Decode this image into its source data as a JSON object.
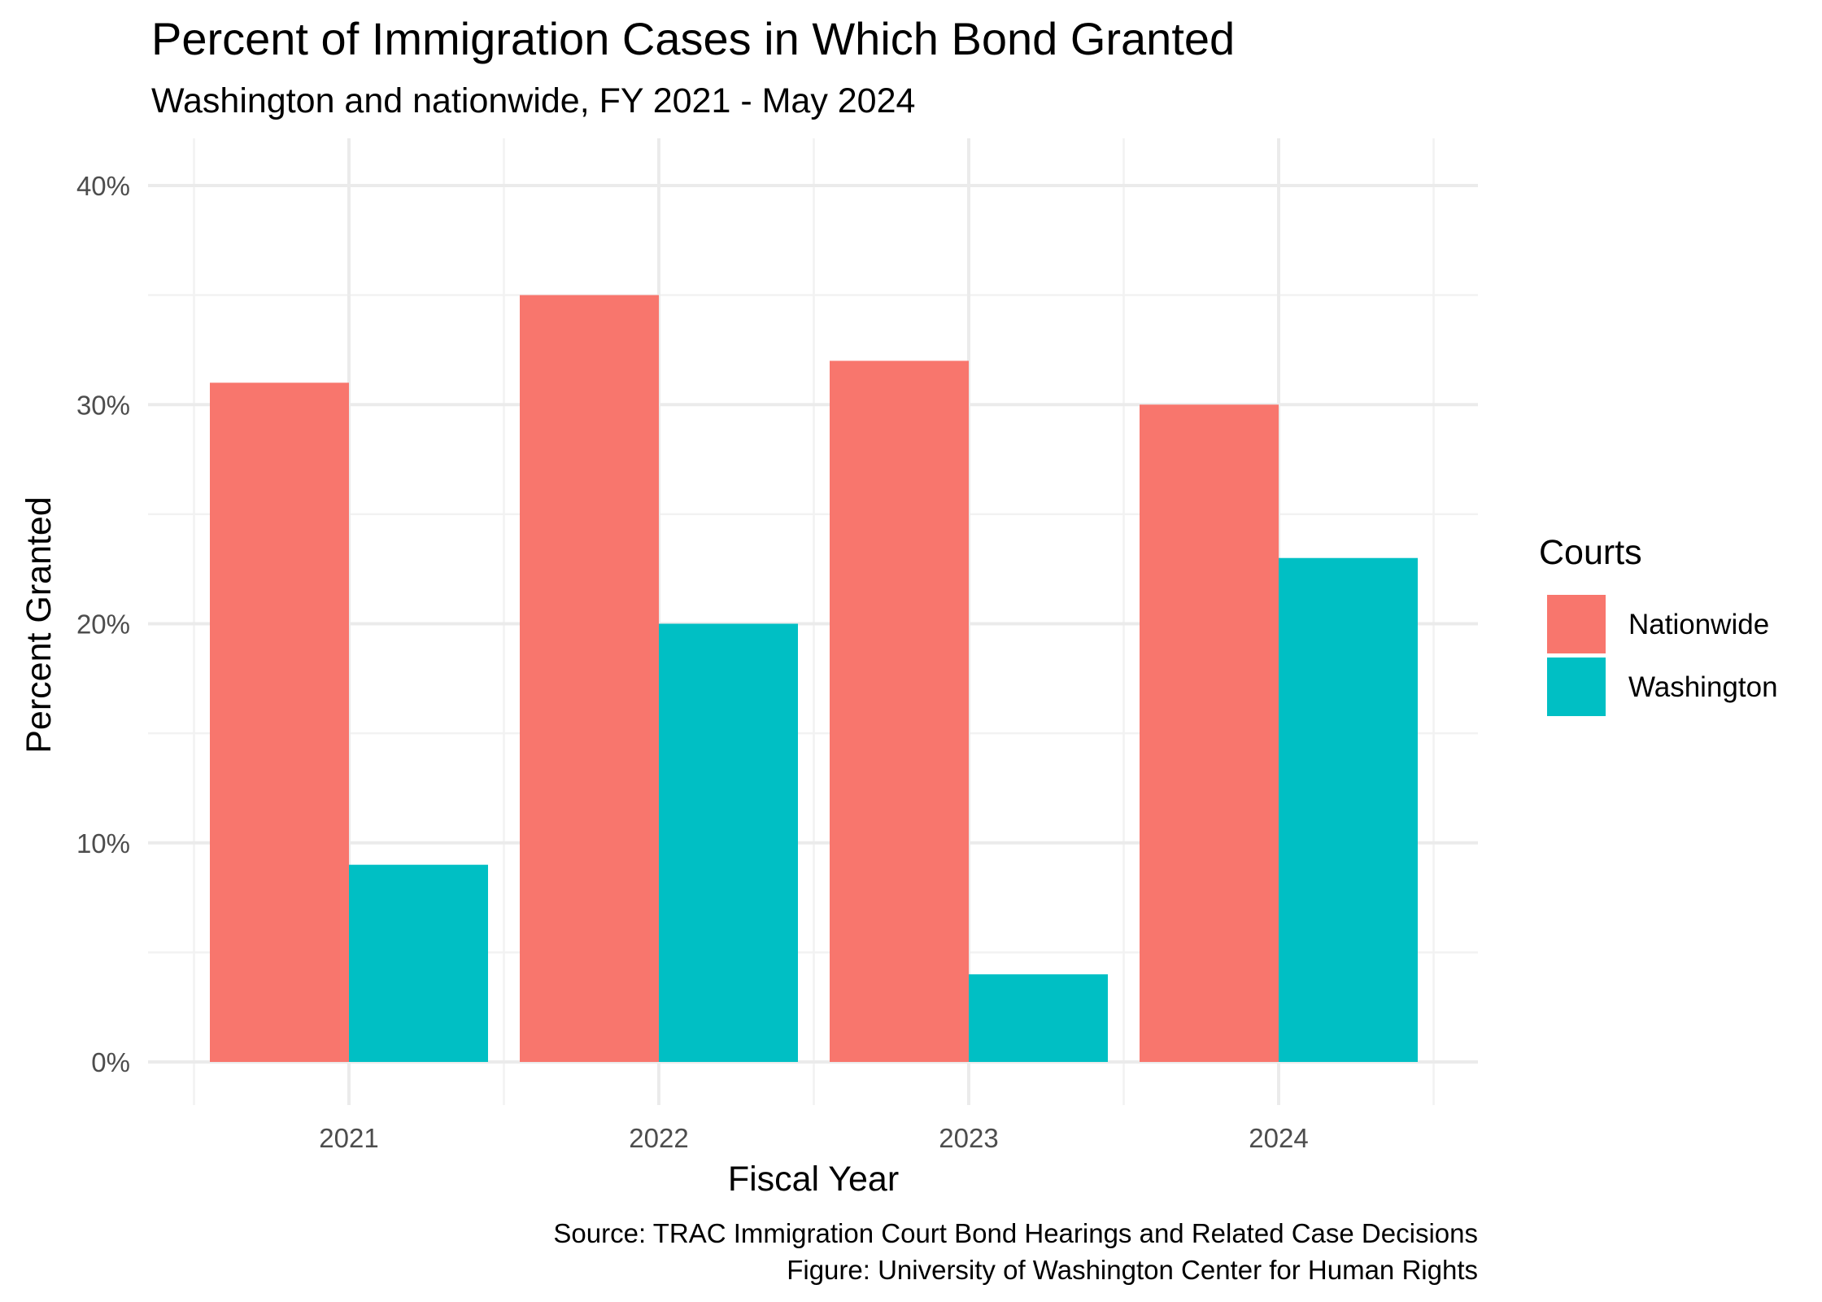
{
  "chart_data": {
    "type": "bar",
    "title": "Percent of Immigration Cases in Which Bond Granted",
    "subtitle": "Washington and nationwide, FY 2021 - May 2024",
    "xlabel": "Fiscal Year",
    "ylabel": "Percent Granted",
    "categories": [
      "2021",
      "2022",
      "2023",
      "2024"
    ],
    "series": [
      {
        "name": "Nationwide",
        "values": [
          31,
          35,
          32,
          30
        ],
        "color": "#F8766D"
      },
      {
        "name": "Washington",
        "values": [
          9,
          20,
          4,
          23
        ],
        "color": "#00BFC4"
      }
    ],
    "ylim": [
      0,
      40
    ],
    "yticks": [
      0,
      10,
      20,
      30,
      40
    ],
    "ytick_labels": [
      "0%",
      "10%",
      "20%",
      "30%",
      "40%"
    ],
    "grid": true,
    "legend": {
      "title": "Courts",
      "position": "right"
    },
    "caption": [
      "Source: TRAC Immigration Court Bond Hearings and Related Case Decisions",
      "Figure: University of Washington Center for Human Rights"
    ]
  }
}
